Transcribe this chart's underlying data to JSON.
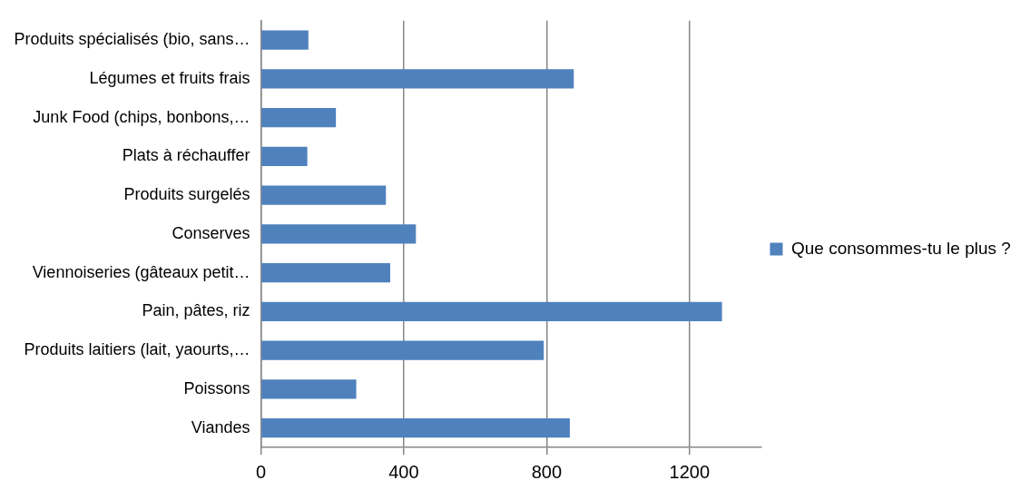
{
  "chart_data": {
    "type": "bar",
    "orientation": "horizontal",
    "categories": [
      "Produits spécialisés (bio, sans…",
      "Légumes et fruits frais",
      "Junk Food (chips, bonbons,…",
      "Plats à réchauffer",
      "Produits surgelés",
      "Conserves",
      "Viennoiseries (gâteaux petit…",
      "Pain, pâtes, riz",
      "Produits laitiers (lait, yaourts,…",
      "Poissons",
      "Viandes"
    ],
    "series": [
      {
        "name": "Que consommes-tu le plus ?",
        "color": "#4f81bd",
        "values": [
          133,
          876,
          210,
          130,
          350,
          434,
          362,
          1291,
          792,
          267,
          865
        ]
      }
    ],
    "xlim": [
      0,
      1400
    ],
    "xticks": [
      0,
      400,
      800,
      1200
    ],
    "grid": "x",
    "legend": "right"
  }
}
